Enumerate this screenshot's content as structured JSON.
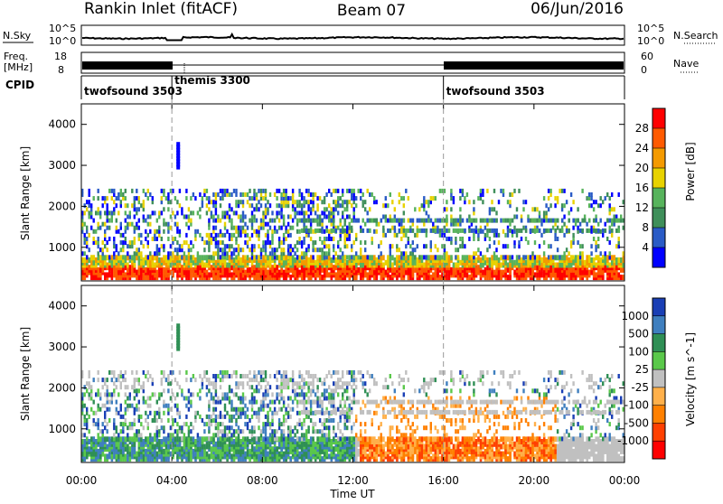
{
  "header": {
    "station": "Rankin Inlet (fitACF)",
    "beam": "Beam 07",
    "date": "06/Jun/2016"
  },
  "strip_panels": {
    "nsky_label": "N.Sky",
    "nsearch_label": "N.Search",
    "noise_ticks": [
      "10^5",
      "10^0"
    ],
    "noise_ticks_right": [
      "10^5",
      "10^0"
    ],
    "freq_label_line1": "Freq.",
    "freq_label_line2": "[MHz]",
    "freq_ticks": [
      "18",
      "8"
    ],
    "nave_label": "Nave",
    "nave_ticks": [
      "60",
      "0"
    ],
    "cpid_label": "CPID"
  },
  "cpid_segments": [
    {
      "name": "twofsound 3503",
      "start_hour": 0,
      "end_hour": 4
    },
    {
      "name": "themis 3300",
      "start_hour": 4,
      "end_hour": 16
    },
    {
      "name": "twofsound 3503",
      "start_hour": 16,
      "end_hour": 24
    }
  ],
  "chart_data": [
    {
      "type": "heatmap",
      "title": "Power",
      "ylabel": "Slant Range [km]",
      "xlabel": "Time UT",
      "xlim": [
        "00:00",
        "24:00"
      ],
      "ylim": [
        180,
        4500
      ],
      "x_ticks": [
        "00:00",
        "04:00",
        "08:00",
        "12:00",
        "16:00",
        "20:00",
        "00:00"
      ],
      "y_ticks": [
        "1000",
        "2000",
        "3000",
        "4000"
      ],
      "colorbar": {
        "label": "Power [dB]",
        "ticks": [
          "4",
          "8",
          "12",
          "16",
          "20",
          "24",
          "28"
        ],
        "colors": [
          "#0000ff",
          "#2a5bc6",
          "#3f8f5a",
          "#57b35c",
          "#e8d200",
          "#f49a00",
          "#ff5a00",
          "#ff0000"
        ]
      }
    },
    {
      "type": "heatmap",
      "title": "Velocity",
      "ylabel": "Slant Range [km]",
      "xlabel": "Time UT",
      "xlim": [
        "00:00",
        "24:00"
      ],
      "ylim": [
        180,
        4500
      ],
      "x_ticks": [
        "00:00",
        "04:00",
        "08:00",
        "12:00",
        "16:00",
        "20:00",
        "00:00"
      ],
      "y_ticks": [
        "1000",
        "2000",
        "3000",
        "4000"
      ],
      "colorbar": {
        "label": "Velocity [m s^-1]",
        "ticks": [
          "1000",
          "500",
          "100",
          "25",
          "-25",
          "-100",
          "-500",
          "-1000"
        ],
        "colors": [
          "#1a3fb5",
          "#3f7fbf",
          "#2f8f55",
          "#5ac84a",
          "#c0c0c0",
          "#ffb04a",
          "#ff8000",
          "#ff4000",
          "#ff0000"
        ]
      }
    }
  ]
}
